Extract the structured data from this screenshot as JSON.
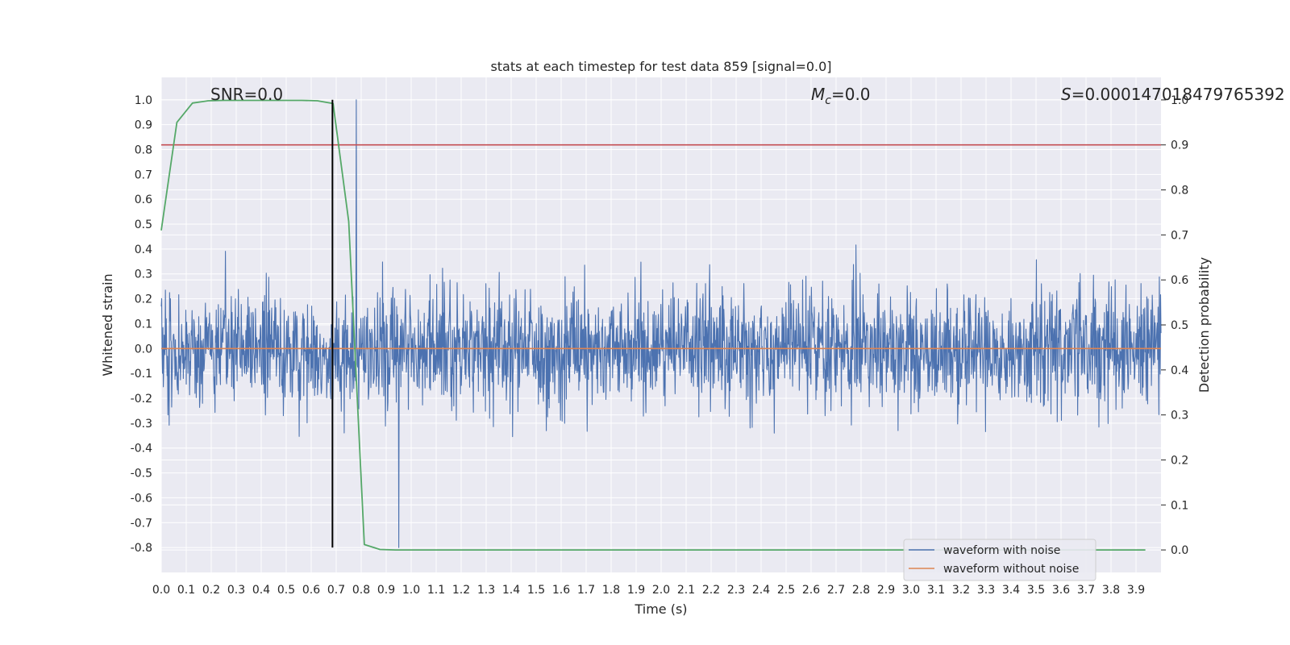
{
  "chart_data": {
    "type": "line",
    "title": "stats at each timestep for test data 859 [signal=0.0]",
    "xlabel": "Time (s)",
    "ylabel": "Whitened strain",
    "ylabel_right": "Detection probability",
    "xlim": [
      0.0,
      4.0
    ],
    "ylim": [
      -0.9,
      1.09
    ],
    "ylim_right": [
      -0.05,
      1.05
    ],
    "x_ticks": [
      "0.0",
      "0.1",
      "0.2",
      "0.3",
      "0.4",
      "0.5",
      "0.6",
      "0.7",
      "0.8",
      "0.9",
      "1.0",
      "1.1",
      "1.2",
      "1.3",
      "1.4",
      "1.5",
      "1.6",
      "1.7",
      "1.8",
      "1.9",
      "2.0",
      "2.1",
      "2.2",
      "2.3",
      "2.4",
      "2.5",
      "2.6",
      "2.7",
      "2.8",
      "2.9",
      "3.0",
      "3.1",
      "3.2",
      "3.3",
      "3.4",
      "3.5",
      "3.6",
      "3.7",
      "3.8",
      "3.9"
    ],
    "y_ticks": [
      "1.0",
      "0.9",
      "0.8",
      "0.7",
      "0.6",
      "0.5",
      "0.4",
      "0.3",
      "0.2",
      "0.1",
      "0.0",
      "-0.1",
      "-0.2",
      "-0.3",
      "-0.4",
      "-0.5",
      "-0.6",
      "-0.7",
      "-0.8"
    ],
    "y_ticks_right": [
      "1.0",
      "0.9",
      "0.8",
      "0.7",
      "0.6",
      "0.5",
      "0.4",
      "0.3",
      "0.2",
      "0.1",
      "0.0"
    ],
    "grid": true,
    "annotations": {
      "snr": "SNR=0.0",
      "mc_symbol": "M",
      "mc_sub": "c",
      "mc_value": "=0.0",
      "s_symbol": "S",
      "s_value": "=0.000147018479765392"
    },
    "legend": {
      "position": "lower-right",
      "entries": [
        "waveform with noise",
        "waveform without noise"
      ]
    },
    "series": [
      {
        "name": "waveform with noise",
        "color": "#4c72b0",
        "description": "noise",
        "x_range": [
          0.0,
          4.0
        ],
        "peak_max": 1.0,
        "peak_max_x": 0.78,
        "peak_min": -0.8,
        "peak_min_x": 0.95
      },
      {
        "name": "waveform without noise",
        "color": "#dd8452",
        "x": [
          0.0,
          4.0
        ],
        "y": [
          0.0,
          0.0
        ]
      },
      {
        "name": "detection probability",
        "axis": "right",
        "color": "#55a868",
        "x": [
          0.0,
          0.0625,
          0.125,
          0.1875,
          0.25,
          0.3125,
          0.375,
          0.4375,
          0.5,
          0.5625,
          0.625,
          0.6875,
          0.75,
          0.8125,
          0.875,
          0.9375,
          1.0,
          3.9375
        ],
        "y": [
          0.71,
          0.95,
          0.993,
          0.998,
          0.999,
          0.999,
          0.999,
          0.999,
          0.999,
          0.999,
          0.998,
          0.992,
          0.73,
          0.012,
          0.001,
          0.0,
          0.0,
          0.0
        ]
      },
      {
        "name": "threshold",
        "axis": "right",
        "color": "#c44e52",
        "y": 0.9
      },
      {
        "name": "marker",
        "color": "#000000",
        "x": 0.685,
        "y_range": [
          -0.8,
          1.0
        ]
      }
    ]
  }
}
